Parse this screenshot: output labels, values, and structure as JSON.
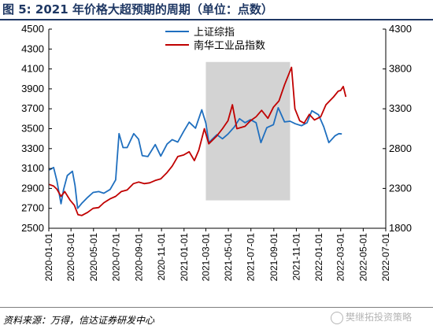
{
  "figure_title": "图 5:  2021 年价格大超预期的周期（单位：点数）",
  "source": "资料来源：万得，信达证券研发中心",
  "watermark": "樊继拓投资策略",
  "chart_data": {
    "type": "line",
    "title": "",
    "xlabel": "",
    "ylabel_left": "",
    "ylabel_right": "",
    "grid": false,
    "legend_position": "top-center",
    "x_ticks": [
      "2020-01-01",
      "2020-03-01",
      "2020-05-01",
      "2020-07-01",
      "2020-09-01",
      "2020-11-01",
      "2021-01-01",
      "2021-03-01",
      "2021-05-01",
      "2021-07-01",
      "2021-09-01",
      "2021-11-01",
      "2022-01-01",
      "2022-03-01",
      "2022-05-01",
      "2022-07-01"
    ],
    "x_range": [
      "2020-01-01",
      "2022-07-01"
    ],
    "y_left": {
      "min": 2500,
      "max": 4500,
      "ticks": [
        2500,
        2700,
        2900,
        3100,
        3300,
        3500,
        3700,
        3900,
        4100,
        4300,
        4500
      ]
    },
    "y_right": {
      "min": 1800,
      "max": 4300,
      "ticks": [
        1800,
        2300,
        2800,
        3300,
        3800,
        4300
      ]
    },
    "shaded_region": {
      "start": "2021-03-01",
      "end": "2021-10-15",
      "y_left_low": 2780,
      "y_left_high": 4170,
      "color": "#d3d3d3"
    },
    "series": [
      {
        "name": "上证综指",
        "axis": "left",
        "color": "#1f6fbf",
        "points": [
          [
            "2020-01-02",
            3085
          ],
          [
            "2020-01-14",
            3110
          ],
          [
            "2020-01-23",
            2976
          ],
          [
            "2020-02-03",
            2746
          ],
          [
            "2020-02-10",
            2890
          ],
          [
            "2020-02-20",
            3030
          ],
          [
            "2020-03-05",
            3072
          ],
          [
            "2020-03-12",
            2930
          ],
          [
            "2020-03-19",
            2700
          ],
          [
            "2020-03-30",
            2750
          ],
          [
            "2020-04-15",
            2810
          ],
          [
            "2020-04-30",
            2860
          ],
          [
            "2020-05-15",
            2868
          ],
          [
            "2020-05-29",
            2852
          ],
          [
            "2020-06-15",
            2890
          ],
          [
            "2020-06-30",
            2985
          ],
          [
            "2020-07-03",
            3150
          ],
          [
            "2020-07-09",
            3450
          ],
          [
            "2020-07-20",
            3310
          ],
          [
            "2020-07-31",
            3310
          ],
          [
            "2020-08-18",
            3450
          ],
          [
            "2020-08-31",
            3395
          ],
          [
            "2020-09-10",
            3230
          ],
          [
            "2020-09-25",
            3220
          ],
          [
            "2020-10-15",
            3340
          ],
          [
            "2020-10-30",
            3225
          ],
          [
            "2020-11-16",
            3345
          ],
          [
            "2020-11-30",
            3390
          ],
          [
            "2020-12-15",
            3366
          ],
          [
            "2020-12-31",
            3473
          ],
          [
            "2021-01-15",
            3566
          ],
          [
            "2021-02-01",
            3505
          ],
          [
            "2021-02-18",
            3690
          ],
          [
            "2021-03-01",
            3555
          ],
          [
            "2021-03-09",
            3360
          ],
          [
            "2021-03-31",
            3440
          ],
          [
            "2021-04-15",
            3399
          ],
          [
            "2021-04-30",
            3446
          ],
          [
            "2021-05-17",
            3517
          ],
          [
            "2021-05-31",
            3600
          ],
          [
            "2021-06-15",
            3560
          ],
          [
            "2021-06-30",
            3590
          ],
          [
            "2021-07-15",
            3560
          ],
          [
            "2021-07-28",
            3360
          ],
          [
            "2021-08-13",
            3510
          ],
          [
            "2021-08-31",
            3540
          ],
          [
            "2021-09-13",
            3710
          ],
          [
            "2021-09-30",
            3568
          ],
          [
            "2021-10-15",
            3575
          ],
          [
            "2021-10-29",
            3550
          ],
          [
            "2021-11-15",
            3530
          ],
          [
            "2021-11-30",
            3560
          ],
          [
            "2021-12-13",
            3680
          ],
          [
            "2021-12-31",
            3640
          ],
          [
            "2022-01-14",
            3520
          ],
          [
            "2022-01-28",
            3360
          ],
          [
            "2022-02-14",
            3430
          ],
          [
            "2022-02-24",
            3450
          ],
          [
            "2022-03-04",
            3447
          ]
        ]
      },
      {
        "name": "南华工业品指数",
        "axis": "right",
        "color": "#c00000",
        "points": [
          [
            "2020-01-02",
            2350
          ],
          [
            "2020-01-14",
            2330
          ],
          [
            "2020-01-23",
            2290
          ],
          [
            "2020-02-03",
            2200
          ],
          [
            "2020-02-13",
            2260
          ],
          [
            "2020-02-28",
            2150
          ],
          [
            "2020-03-10",
            2090
          ],
          [
            "2020-03-20",
            1970
          ],
          [
            "2020-03-30",
            1960
          ],
          [
            "2020-04-15",
            2000
          ],
          [
            "2020-04-30",
            2050
          ],
          [
            "2020-05-15",
            2060
          ],
          [
            "2020-05-29",
            2120
          ],
          [
            "2020-06-15",
            2170
          ],
          [
            "2020-06-30",
            2200
          ],
          [
            "2020-07-15",
            2260
          ],
          [
            "2020-07-31",
            2280
          ],
          [
            "2020-08-17",
            2360
          ],
          [
            "2020-08-31",
            2380
          ],
          [
            "2020-09-15",
            2360
          ],
          [
            "2020-09-30",
            2370
          ],
          [
            "2020-10-15",
            2400
          ],
          [
            "2020-10-30",
            2420
          ],
          [
            "2020-11-16",
            2500
          ],
          [
            "2020-11-30",
            2580
          ],
          [
            "2020-12-15",
            2700
          ],
          [
            "2020-12-31",
            2720
          ],
          [
            "2021-01-15",
            2760
          ],
          [
            "2021-01-29",
            2650
          ],
          [
            "2021-02-10",
            2780
          ],
          [
            "2021-02-25",
            3050
          ],
          [
            "2021-03-09",
            2860
          ],
          [
            "2021-03-31",
            2960
          ],
          [
            "2021-04-15",
            3050
          ],
          [
            "2021-04-30",
            3150
          ],
          [
            "2021-05-12",
            3350
          ],
          [
            "2021-05-24",
            3050
          ],
          [
            "2021-06-15",
            3080
          ],
          [
            "2021-06-30",
            3150
          ],
          [
            "2021-07-15",
            3200
          ],
          [
            "2021-07-30",
            3280
          ],
          [
            "2021-08-16",
            3180
          ],
          [
            "2021-08-31",
            3320
          ],
          [
            "2021-09-15",
            3400
          ],
          [
            "2021-09-30",
            3600
          ],
          [
            "2021-10-19",
            3820
          ],
          [
            "2021-10-28",
            3300
          ],
          [
            "2021-11-10",
            3150
          ],
          [
            "2021-11-22",
            3120
          ],
          [
            "2021-12-06",
            3230
          ],
          [
            "2021-12-20",
            3160
          ],
          [
            "2022-01-06",
            3200
          ],
          [
            "2022-01-20",
            3350
          ],
          [
            "2022-02-10",
            3450
          ],
          [
            "2022-02-22",
            3520
          ],
          [
            "2022-03-01",
            3530
          ],
          [
            "2022-03-08",
            3580
          ],
          [
            "2022-03-15",
            3450
          ]
        ]
      }
    ]
  }
}
